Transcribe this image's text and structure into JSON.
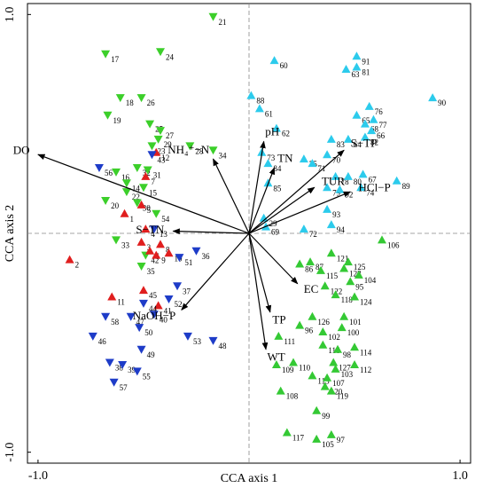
{
  "chart_data": {
    "type": "biplot",
    "x_label": "CCA axis 1",
    "y_label": "CCA axis 2",
    "xlim": [
      -1.05,
      1.05
    ],
    "ylim": [
      -1.05,
      1.05
    ],
    "xticks": [
      {
        "value": -1,
        "label": "-1.0"
      },
      {
        "value": 1,
        "label": "1.0"
      }
    ],
    "yticks": [
      {
        "value": -1,
        "label": "-1.0"
      },
      {
        "value": 1,
        "label": "1.0"
      }
    ],
    "vector_color": "#000000",
    "vectors": [
      {
        "label": "DO",
        "x": -1.0,
        "y": 0.36
      },
      {
        "label": "NH₄⁺−N",
        "x": -0.17,
        "y": 0.34
      },
      {
        "label": "pH",
        "x": 0.07,
        "y": 0.42
      },
      {
        "label": "TN",
        "x": 0.12,
        "y": 0.3
      },
      {
        "label": "S−TP",
        "x": 0.45,
        "y": 0.38
      },
      {
        "label": "TUR",
        "x": 0.31,
        "y": 0.21
      },
      {
        "label": "HCl−P",
        "x": 0.48,
        "y": 0.19
      },
      {
        "label": "S−TN",
        "x": -0.36,
        "y": 0.01
      },
      {
        "label": "EC",
        "x": 0.23,
        "y": -0.23
      },
      {
        "label": "TP",
        "x": 0.1,
        "y": -0.36
      },
      {
        "label": "NaOH−P",
        "x": -0.32,
        "y": -0.35
      },
      {
        "label": "WT",
        "x": 0.08,
        "y": -0.53
      }
    ],
    "series": [
      {
        "color": "#3ccf2a",
        "marker": "triangle-down",
        "labels": [
          "21",
          "17",
          "24",
          "18",
          "26",
          "19",
          "25",
          "27",
          "29",
          "28",
          "34",
          "23",
          "16",
          "32",
          "31",
          "14",
          "22",
          "15",
          "20",
          "30",
          "54",
          "33",
          "35",
          "42"
        ],
        "x": [
          -0.17,
          -0.68,
          -0.42,
          -0.61,
          -0.51,
          -0.67,
          -0.47,
          -0.42,
          -0.43,
          -0.28,
          -0.17,
          -0.46,
          -0.63,
          -0.53,
          -0.48,
          -0.58,
          -0.58,
          -0.5,
          -0.68,
          -0.53,
          -0.44,
          -0.63,
          -0.51,
          -0.49
        ],
        "y": [
          0.99,
          0.82,
          0.83,
          0.62,
          0.62,
          0.54,
          0.5,
          0.47,
          0.43,
          0.4,
          0.38,
          0.4,
          0.28,
          0.3,
          0.29,
          0.23,
          0.19,
          0.21,
          0.15,
          0.14,
          0.09,
          -0.03,
          -0.15,
          -0.1
        ]
      },
      {
        "color": "#e01e1e",
        "marker": "triangle-up",
        "labels": [
          "12",
          "7",
          "1",
          "5",
          "3",
          "4",
          "2",
          "6",
          "9",
          "8",
          "10",
          "11",
          "45",
          "41"
        ],
        "x": [
          -0.44,
          -0.49,
          -0.59,
          -0.51,
          -0.51,
          -0.49,
          -0.85,
          -0.47,
          -0.44,
          -0.42,
          -0.38,
          -0.65,
          -0.5,
          -0.43
        ],
        "y": [
          0.37,
          0.26,
          0.09,
          0.13,
          -0.04,
          0.02,
          -0.12,
          -0.08,
          -0.1,
          -0.05,
          -0.09,
          -0.29,
          -0.26,
          -0.33
        ]
      },
      {
        "color": "#1e3cc8",
        "marker": "triangle-down",
        "labels": [
          "56",
          "43",
          "13",
          "36",
          "51",
          "37",
          "52",
          "44",
          "40",
          "47",
          "50",
          "58",
          "46",
          "49",
          "38",
          "39",
          "55",
          "57",
          "53",
          "48"
        ],
        "x": [
          -0.71,
          -0.46,
          -0.45,
          -0.25,
          -0.33,
          -0.34,
          -0.38,
          -0.5,
          -0.45,
          -0.56,
          -0.52,
          -0.68,
          -0.74,
          -0.51,
          -0.66,
          -0.6,
          -0.53,
          -0.64,
          -0.29,
          -0.17
        ],
        "y": [
          0.3,
          0.36,
          0.02,
          -0.08,
          -0.11,
          -0.24,
          -0.3,
          -0.32,
          -0.37,
          -0.38,
          -0.43,
          -0.38,
          -0.47,
          -0.53,
          -0.59,
          -0.6,
          -0.63,
          -0.68,
          -0.47,
          -0.49
        ]
      },
      {
        "color": "#2ccbec",
        "marker": "triangle-up",
        "labels": [
          "60",
          "91",
          "63",
          "81",
          "88",
          "61",
          "90",
          "76",
          "65",
          "77",
          "68",
          "66",
          "62",
          "83",
          "64",
          "82",
          "73",
          "70",
          "75",
          "71",
          "84",
          "85",
          "78",
          "80",
          "67",
          "79",
          "74",
          "89",
          "92",
          "93",
          "29",
          "69",
          "94",
          "72"
        ],
        "x": [
          0.12,
          0.51,
          0.46,
          0.51,
          0.01,
          0.05,
          0.87,
          0.57,
          0.51,
          0.59,
          0.55,
          0.58,
          0.13,
          0.39,
          0.47,
          0.55,
          0.06,
          0.37,
          0.26,
          0.3,
          0.09,
          0.09,
          0.41,
          0.47,
          0.54,
          0.37,
          0.53,
          0.7,
          0.43,
          0.37,
          0.07,
          0.08,
          0.39,
          0.26
        ],
        "y": [
          0.79,
          0.81,
          0.75,
          0.76,
          0.63,
          0.57,
          0.62,
          0.58,
          0.54,
          0.52,
          0.5,
          0.47,
          0.48,
          0.43,
          0.43,
          0.44,
          0.37,
          0.36,
          0.34,
          0.32,
          0.32,
          0.23,
          0.26,
          0.26,
          0.27,
          0.21,
          0.21,
          0.24,
          0.2,
          0.11,
          0.07,
          0.03,
          0.04,
          0.02
        ]
      },
      {
        "color": "#34c934",
        "marker": "triangle-up",
        "labels": [
          "106",
          "121",
          "86",
          "87",
          "125",
          "123",
          "115",
          "104",
          "122",
          "95",
          "118",
          "124",
          "126",
          "101",
          "96",
          "102",
          "100",
          "111",
          "116",
          "98",
          "114",
          "110",
          "127",
          "112",
          "109",
          "113",
          "103",
          "107",
          "120",
          "119",
          "108",
          "99",
          "117",
          "105",
          "97"
        ],
        "x": [
          0.63,
          0.39,
          0.24,
          0.29,
          0.47,
          0.45,
          0.34,
          0.52,
          0.36,
          0.48,
          0.41,
          0.5,
          0.3,
          0.45,
          0.24,
          0.35,
          0.44,
          0.14,
          0.35,
          0.42,
          0.5,
          0.21,
          0.4,
          0.5,
          0.13,
          0.3,
          0.41,
          0.37,
          0.36,
          0.39,
          0.15,
          0.32,
          0.18,
          0.32,
          0.39
        ],
        "y": [
          -0.03,
          -0.09,
          -0.14,
          -0.13,
          -0.13,
          -0.16,
          -0.17,
          -0.19,
          -0.24,
          -0.22,
          -0.28,
          -0.29,
          -0.38,
          -0.38,
          -0.42,
          -0.45,
          -0.43,
          -0.47,
          -0.51,
          -0.53,
          -0.52,
          -0.59,
          -0.59,
          -0.6,
          -0.6,
          -0.65,
          -0.62,
          -0.66,
          -0.7,
          -0.72,
          -0.72,
          -0.81,
          -0.91,
          -0.94,
          -0.92
        ]
      }
    ]
  }
}
